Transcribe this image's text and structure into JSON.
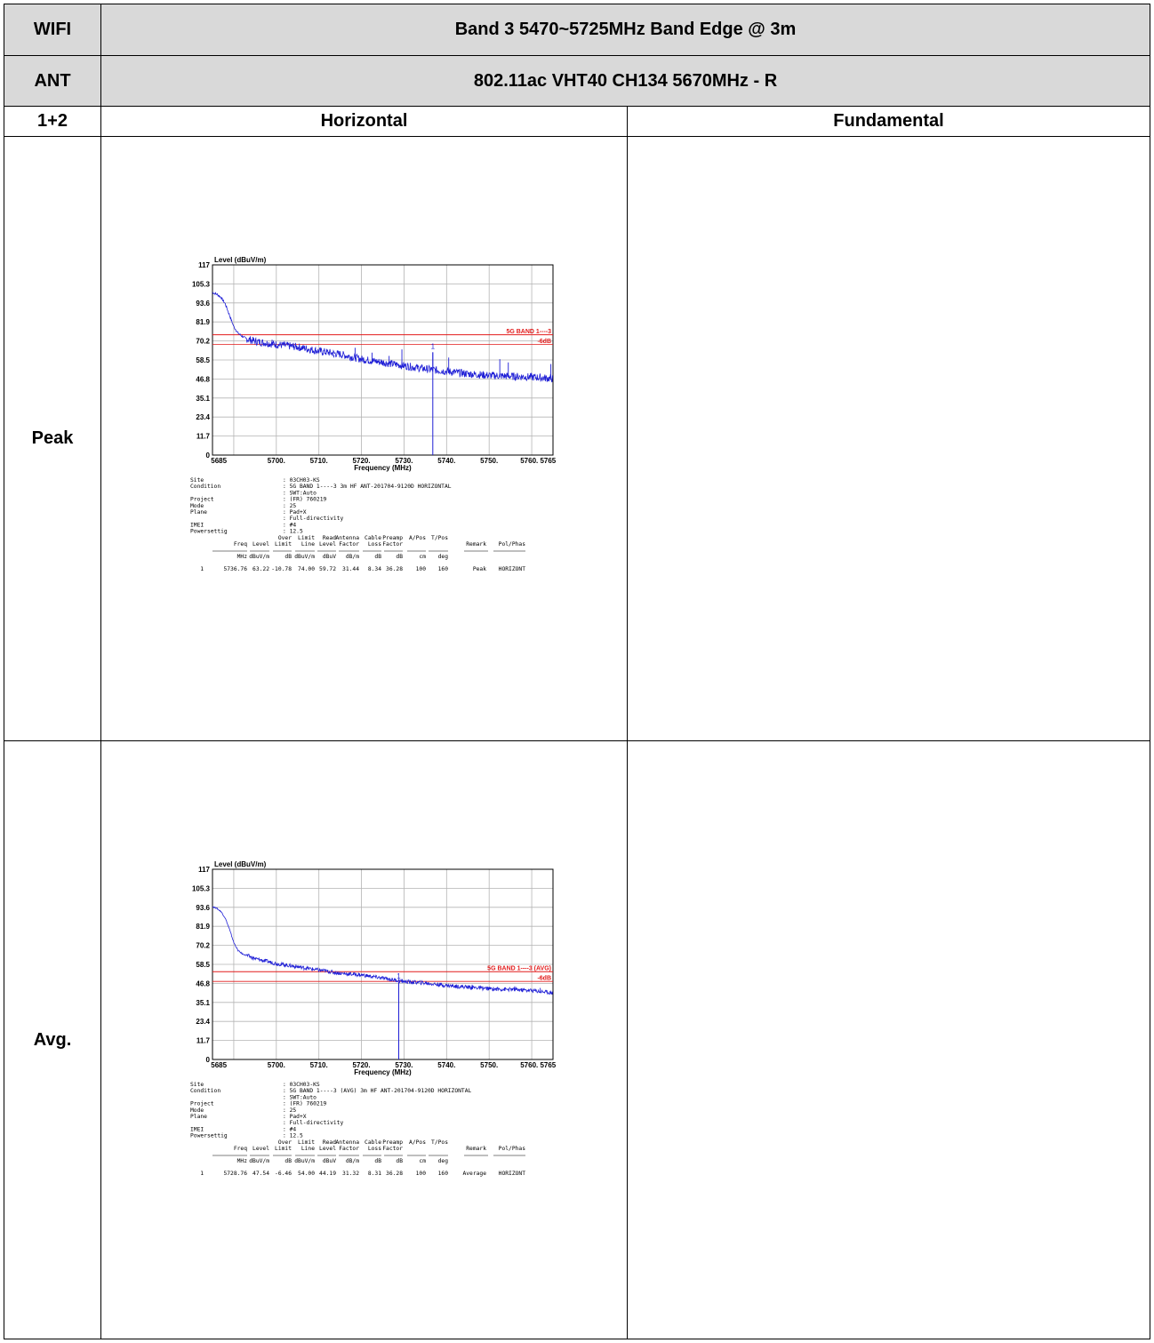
{
  "table": {
    "row_labels": {
      "wifi": "WIFI",
      "ant": "ANT",
      "config": "1+2",
      "peak": "Peak",
      "avg": "Avg."
    },
    "band_title": "Band 3 5470~5725MHz Band Edge @ 3m",
    "mode_title": "802.11ac VHT40 CH134 5670MHz - R",
    "col_horizontal": "Horizontal",
    "col_fundamental": "Fundamental"
  },
  "colors": {
    "trace": "#1f1fd6",
    "limit": "#e21b1b",
    "grid": "#b4b4b4",
    "header_bg": "#d9d9d9"
  },
  "chart_data": [
    {
      "type": "line",
      "ylabel": "Level (dBuV/m)",
      "xlabel": "Frequency (MHz)",
      "xlim": [
        5685,
        5765
      ],
      "ylim": [
        0,
        117
      ],
      "y_ticks": [
        "0",
        "11.7",
        "23.4",
        "35.1",
        "46.8",
        "58.5",
        "70.2",
        "81.9",
        "93.6",
        "105.3",
        "117"
      ],
      "x_ticks": [
        "5685",
        "5700.",
        "5710.",
        "5720.",
        "5730.",
        "5740.",
        "5750.",
        "5760. 5765"
      ],
      "limit_lines": [
        {
          "label": "5G BAND 1----3",
          "value": 74.0
        },
        {
          "label": "-6dB",
          "value": 68.0
        }
      ],
      "marker": {
        "label": "1",
        "x": 5736.76,
        "y": 63.22
      },
      "trace": {
        "x": [
          5685,
          5686,
          5687,
          5688,
          5689,
          5690,
          5691,
          5692,
          5693,
          5695,
          5700,
          5705,
          5710,
          5715,
          5720,
          5725,
          5730,
          5735,
          5740,
          5745,
          5750,
          5755,
          5760,
          5765
        ],
        "y": [
          100,
          99,
          97,
          93,
          86,
          79,
          75,
          73,
          71.5,
          70,
          68,
          66.5,
          64,
          62,
          59,
          57,
          55,
          53,
          51.5,
          50,
          49,
          48.5,
          48,
          47
        ]
      },
      "spikes": [
        {
          "x": 5699,
          "y": 71
        },
        {
          "x": 5704,
          "y": 69
        },
        {
          "x": 5713.5,
          "y": 60
        },
        {
          "x": 5718.5,
          "y": 66
        },
        {
          "x": 5722.5,
          "y": 63
        },
        {
          "x": 5726.5,
          "y": 61
        },
        {
          "x": 5729.5,
          "y": 65
        },
        {
          "x": 5736.76,
          "y": 63.22
        },
        {
          "x": 5740.5,
          "y": 60
        },
        {
          "x": 5752.5,
          "y": 59
        },
        {
          "x": 5754.5,
          "y": 57
        },
        {
          "x": 5764.5,
          "y": 56
        }
      ],
      "info": [
        [
          "Site",
          ": 03CH03-KS"
        ],
        [
          "Condition",
          ": 5G BAND 1----3 3m HF ANT-201704-9120D HORIZONTAL"
        ],
        [
          "",
          ": SWT:Auto"
        ],
        [
          "Project",
          ": (FR) 760219"
        ],
        [
          "Mode",
          ": 25"
        ],
        [
          "Plane",
          ": Pad+X"
        ],
        [
          "",
          ": Full-directivity"
        ],
        [
          "IMEI",
          ": #4"
        ],
        [
          "Powersettig",
          ": 12.5"
        ]
      ],
      "table": {
        "head1": [
          "",
          "",
          "",
          "Over",
          "Limit",
          "Read",
          "Antenna",
          "Cable",
          "Preamp",
          "A/Pos",
          "T/Pos",
          "",
          ""
        ],
        "head2": [
          "",
          "Freq",
          "Level",
          "Limit",
          "Line",
          "Level",
          "Factor",
          "Loss",
          "Factor",
          "",
          "",
          "Remark",
          "Pol/Phas"
        ],
        "units": [
          "",
          "MHz",
          "dBuV/m",
          "dB",
          "dBuV/m",
          "dBuV",
          "dB/m",
          "dB",
          "dB",
          "cm",
          "deg",
          "",
          ""
        ],
        "row": [
          "1",
          "5736.76",
          "63.22",
          "-10.78",
          "74.00",
          "59.72",
          "31.44",
          "8.34",
          "36.28",
          "100",
          "160",
          "Peak",
          "HORIZONT"
        ]
      }
    },
    {
      "type": "line",
      "ylabel": "Level (dBuV/m)",
      "xlabel": "Frequency (MHz)",
      "xlim": [
        5685,
        5765
      ],
      "ylim": [
        0,
        117
      ],
      "y_ticks": [
        "0",
        "11.7",
        "23.4",
        "35.1",
        "46.8",
        "58.5",
        "70.2",
        "81.9",
        "93.6",
        "105.3",
        "117"
      ],
      "x_ticks": [
        "5685",
        "5700.",
        "5710.",
        "5720.",
        "5730.",
        "5740.",
        "5750.",
        "5760. 5765"
      ],
      "limit_lines": [
        {
          "label": "5G BAND 1----3 (AVG)",
          "value": 54.0
        },
        {
          "label": "-6dB",
          "value": 48.0
        }
      ],
      "marker": {
        "label": "1",
        "x": 5728.76,
        "y": 47.54
      },
      "trace": {
        "x": [
          5685,
          5686,
          5687,
          5688,
          5689,
          5690,
          5691,
          5692,
          5695,
          5700,
          5705,
          5710,
          5715,
          5720,
          5725,
          5730,
          5735,
          5740,
          5745,
          5750,
          5755,
          5760,
          5765
        ],
        "y": [
          94,
          93,
          91,
          87,
          80,
          72,
          67,
          65,
          62,
          59,
          57,
          55,
          53,
          52,
          50,
          48,
          47,
          45.5,
          44.5,
          43.5,
          43,
          42.5,
          41
        ]
      },
      "spikes": [
        {
          "x": 5729.5,
          "y": 48.5
        },
        {
          "x": 5746,
          "y": 46
        },
        {
          "x": 5756,
          "y": 45
        },
        {
          "x": 5762,
          "y": 44
        }
      ],
      "info": [
        [
          "Site",
          ": 03CH03-KS"
        ],
        [
          "Condition",
          ": 5G BAND 1----3 (AVG) 3m HF ANT-201704-9120D HORIZONTAL"
        ],
        [
          "",
          ": SWT:Auto"
        ],
        [
          "Project",
          ": (FR) 760219"
        ],
        [
          "Mode",
          ": 25"
        ],
        [
          "Plane",
          ": Pad+X"
        ],
        [
          "",
          ": Full-directivity"
        ],
        [
          "IMEI",
          ": #4"
        ],
        [
          "Powersettig",
          ": 12.5"
        ]
      ],
      "table": {
        "head1": [
          "",
          "",
          "",
          "Over",
          "Limit",
          "Read",
          "Antenna",
          "Cable",
          "Preamp",
          "A/Pos",
          "T/Pos",
          "",
          ""
        ],
        "head2": [
          "",
          "Freq",
          "Level",
          "Limit",
          "Line",
          "Level",
          "Factor",
          "Loss",
          "Factor",
          "",
          "",
          "Remark",
          "Pol/Phas"
        ],
        "units": [
          "",
          "MHz",
          "dBuV/m",
          "dB",
          "dBuV/m",
          "dBuV",
          "dB/m",
          "dB",
          "dB",
          "cm",
          "deg",
          "",
          ""
        ],
        "row": [
          "1",
          "5728.76",
          "47.54",
          "-6.46",
          "54.00",
          "44.19",
          "31.32",
          "8.31",
          "36.28",
          "100",
          "160",
          "Average",
          "HORIZONT"
        ]
      }
    }
  ]
}
